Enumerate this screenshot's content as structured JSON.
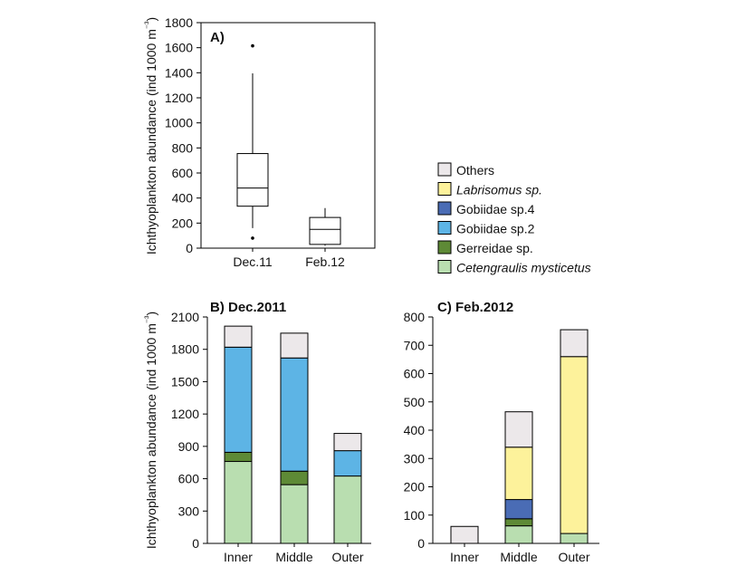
{
  "colors": {
    "Others": "#ece8ea",
    "Labrisomus": "#fdf29b",
    "Gobiidae4": "#4a6cb5",
    "Gobiidae2": "#5db4e5",
    "Gerreidae": "#5e8a36",
    "Cetengraulis": "#b9deb0"
  },
  "chart_data": [
    {
      "type": "box",
      "panel_label": "A)",
      "ylabel": "Ichthyoplankton abundance (ind 1000 m⁻³)",
      "ylim": [
        0,
        1800
      ],
      "yticks": [
        "0",
        "200",
        "400",
        "600",
        "800",
        "1000",
        "1200",
        "1400",
        "1600",
        "1800"
      ],
      "categories": [
        "Dec.11",
        "Feb.12"
      ],
      "boxes": [
        {
          "name": "Dec.11",
          "whisker_low": 160,
          "q1": 335,
          "median": 480,
          "q3": 755,
          "whisker_high": 1395,
          "outliers": [
            1615,
            80
          ]
        },
        {
          "name": "Feb.12",
          "whisker_low": 20,
          "q1": 30,
          "median": 150,
          "q3": 245,
          "whisker_high": 320,
          "outliers": []
        }
      ]
    },
    {
      "type": "bar",
      "stacked": true,
      "title": "B) Dec.2011",
      "ylabel": "Ichthyoplankton abundance (ind 1000 m⁻³)",
      "ylim": [
        0,
        2100
      ],
      "yticks": [
        "0",
        "300",
        "600",
        "900",
        "1200",
        "1500",
        "1800",
        "2100"
      ],
      "categories": [
        "Inner",
        "Middle",
        "Outer"
      ],
      "series": [
        {
          "key": "Cetengraulis",
          "values": [
            760,
            545,
            625
          ]
        },
        {
          "key": "Gerreidae",
          "values": [
            85,
            125,
            0
          ]
        },
        {
          "key": "Gobiidae2",
          "values": [
            975,
            1050,
            235
          ]
        },
        {
          "key": "Gobiidae4",
          "values": [
            0,
            0,
            0
          ]
        },
        {
          "key": "Labrisomus",
          "values": [
            0,
            0,
            0
          ]
        },
        {
          "key": "Others",
          "values": [
            195,
            230,
            160
          ]
        }
      ]
    },
    {
      "type": "bar",
      "stacked": true,
      "title": "C) Feb.2012",
      "ylim": [
        0,
        800
      ],
      "yticks": [
        "0",
        "100",
        "200",
        "300",
        "400",
        "500",
        "600",
        "700",
        "800"
      ],
      "categories": [
        "Inner",
        "Middle",
        "Outer"
      ],
      "series": [
        {
          "key": "Cetengraulis",
          "values": [
            0,
            62,
            35
          ]
        },
        {
          "key": "Gerreidae",
          "values": [
            0,
            25,
            0
          ]
        },
        {
          "key": "Gobiidae2",
          "values": [
            0,
            0,
            0
          ]
        },
        {
          "key": "Gobiidae4",
          "values": [
            0,
            68,
            0
          ]
        },
        {
          "key": "Labrisomus",
          "values": [
            0,
            185,
            625
          ]
        },
        {
          "key": "Others",
          "values": [
            60,
            125,
            95
          ]
        }
      ]
    }
  ],
  "legend": [
    {
      "key": "Others",
      "label": "Others",
      "italic": false
    },
    {
      "key": "Labrisomus",
      "label": "Labrisomus sp.",
      "italic": true
    },
    {
      "key": "Gobiidae4",
      "label": "Gobiidae sp.4",
      "italic": false
    },
    {
      "key": "Gobiidae2",
      "label": "Gobiidae sp.2",
      "italic": false
    },
    {
      "key": "Gerreidae",
      "label": "Gerreidae sp.",
      "italic": false
    },
    {
      "key": "Cetengraulis",
      "label": "Cetengraulis mysticetus",
      "italic": true
    }
  ]
}
